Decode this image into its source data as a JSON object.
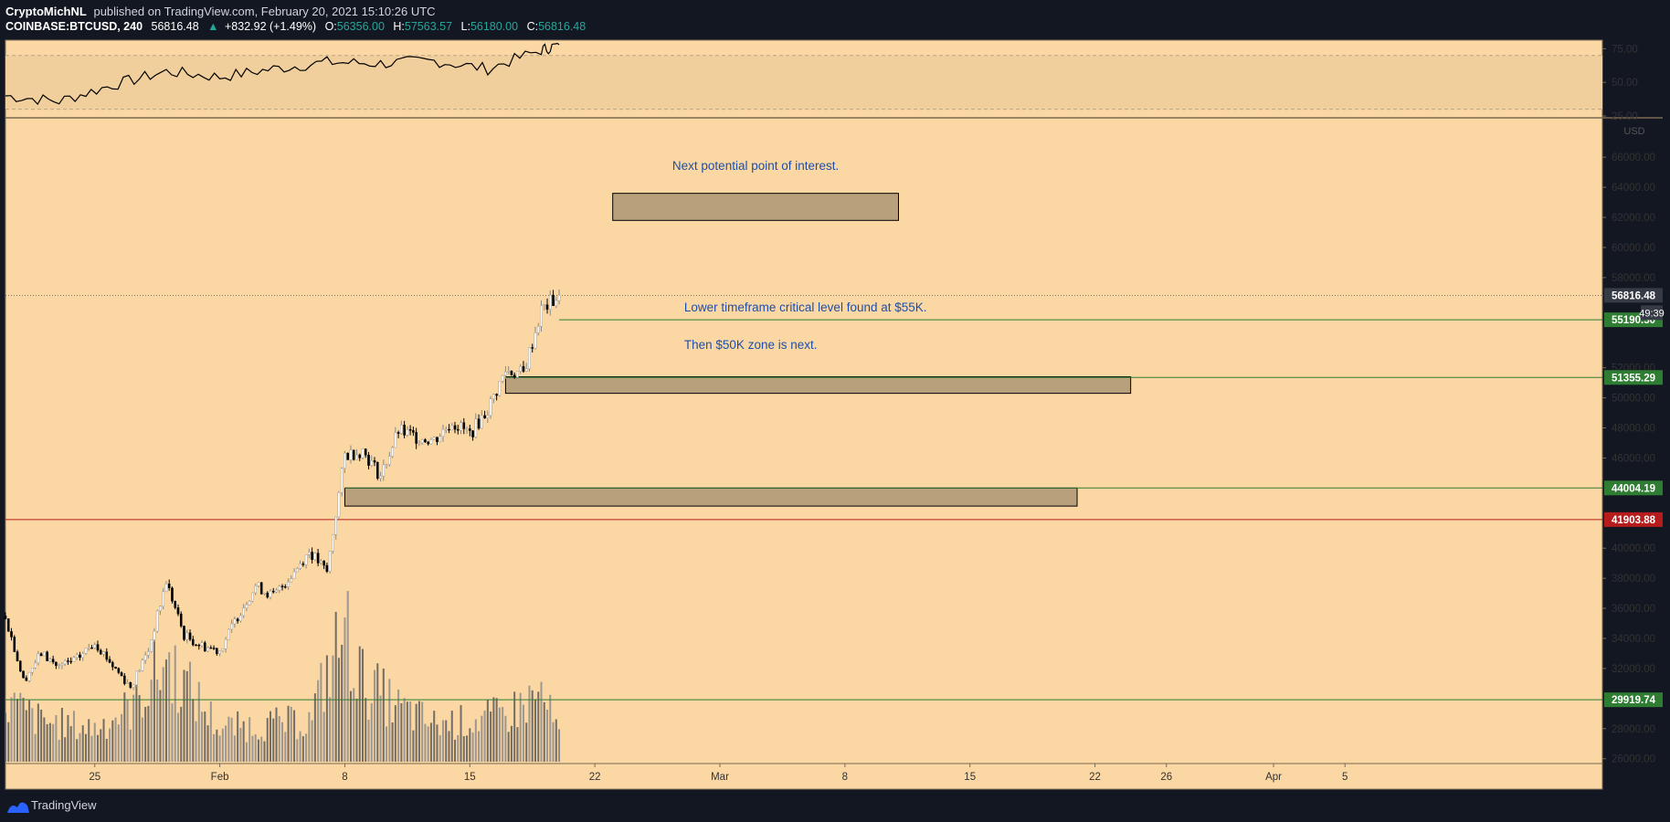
{
  "header": {
    "author": "CryptoMichNL",
    "published": "published on TradingView.com, February 20, 2021 15:10:26 UTC",
    "symbol": "COINBASE:BTCUSD, 240",
    "last": "56816.48",
    "change": "+832.92 (+1.49%)",
    "o_label": "O:",
    "o": "56356.00",
    "h_label": "H:",
    "h": "57563.57",
    "l_label": "L:",
    "l": "56180.00",
    "c_label": "C:",
    "c": "56816.48"
  },
  "footer": {
    "brand": "TradingView"
  },
  "colors": {
    "background": "#fbd7a3",
    "up": "#ffffff",
    "down": "#000000",
    "zone_fill": "#b8a07c",
    "support": "#2e7d32",
    "resistance": "#b71c1c",
    "annotation": "#1e4fa8",
    "rsi_band": "#f0cf9c"
  },
  "chart_data": [
    {
      "type": "line",
      "name": "rsi-pane",
      "y_ticks": [
        "75.00",
        "50.00",
        "25.00"
      ],
      "ylim": [
        25,
        80
      ],
      "band": [
        30,
        70
      ],
      "x": [
        "2021-01-20",
        "2021-01-23",
        "2021-01-26",
        "2021-01-29",
        "2021-02-01",
        "2021-02-04",
        "2021-02-07",
        "2021-02-10",
        "2021-02-13",
        "2021-02-16",
        "2021-02-19",
        "2021-02-20"
      ],
      "values": [
        40,
        36,
        48,
        58,
        54,
        60,
        65,
        64,
        66,
        60,
        74,
        78
      ]
    },
    {
      "type": "candlestick",
      "name": "price-pane",
      "unit": "USD",
      "y_ticks": [
        "66000.00",
        "64000.00",
        "62000.00",
        "60000.00",
        "58000.00",
        "52000.00",
        "50000.00",
        "48000.00",
        "46000.00",
        "40000.00",
        "38000.00",
        "36000.00",
        "34000.00",
        "32000.00",
        "28000.00",
        "26000.00"
      ],
      "ylim": [
        25800,
        68500
      ],
      "x_ticks": [
        "25",
        "Feb",
        "8",
        "15",
        "22",
        "Mar",
        "8",
        "15",
        "22",
        "26",
        "Apr",
        "5"
      ],
      "price_path": [
        {
          "date": "2021-01-20",
          "price": 35500
        },
        {
          "date": "2021-01-21",
          "price": 31200
        },
        {
          "date": "2021-01-22",
          "price": 33000
        },
        {
          "date": "2021-01-23",
          "price": 32100
        },
        {
          "date": "2021-01-24",
          "price": 32600
        },
        {
          "date": "2021-01-25",
          "price": 33800
        },
        {
          "date": "2021-01-26",
          "price": 32200
        },
        {
          "date": "2021-01-27",
          "price": 30800
        },
        {
          "date": "2021-01-28",
          "price": 33200
        },
        {
          "date": "2021-01-29",
          "price": 37800
        },
        {
          "date": "2021-01-30",
          "price": 34200
        },
        {
          "date": "2021-01-31",
          "price": 33500
        },
        {
          "date": "2021-02-01",
          "price": 33200
        },
        {
          "date": "2021-02-02",
          "price": 35500
        },
        {
          "date": "2021-02-03",
          "price": 37500
        },
        {
          "date": "2021-02-04",
          "price": 36800
        },
        {
          "date": "2021-02-05",
          "price": 38200
        },
        {
          "date": "2021-02-06",
          "price": 39800
        },
        {
          "date": "2021-02-07",
          "price": 38400
        },
        {
          "date": "2021-02-08",
          "price": 46200
        },
        {
          "date": "2021-02-09",
          "price": 46500
        },
        {
          "date": "2021-02-10",
          "price": 44800
        },
        {
          "date": "2021-02-11",
          "price": 47800
        },
        {
          "date": "2021-02-12",
          "price": 47400
        },
        {
          "date": "2021-02-13",
          "price": 47200
        },
        {
          "date": "2021-02-14",
          "price": 48400
        },
        {
          "date": "2021-02-15",
          "price": 47600
        },
        {
          "date": "2021-02-16",
          "price": 49200
        },
        {
          "date": "2021-02-17",
          "price": 51800
        },
        {
          "date": "2021-02-18",
          "price": 51600
        },
        {
          "date": "2021-02-19",
          "price": 55800
        },
        {
          "date": "2021-02-20",
          "price": 56816.48
        }
      ],
      "volume_path": [
        {
          "date": "2021-01-20",
          "volume": 0.45
        },
        {
          "date": "2021-01-22",
          "volume": 0.3
        },
        {
          "date": "2021-01-25",
          "volume": 0.25
        },
        {
          "date": "2021-01-27",
          "volume": 0.4
        },
        {
          "date": "2021-01-29",
          "volume": 0.75
        },
        {
          "date": "2021-02-01",
          "volume": 0.25
        },
        {
          "date": "2021-02-04",
          "volume": 0.28
        },
        {
          "date": "2021-02-06",
          "volume": 0.3
        },
        {
          "date": "2021-02-08",
          "volume": 1.0
        },
        {
          "date": "2021-02-09",
          "volume": 0.6
        },
        {
          "date": "2021-02-11",
          "volume": 0.4
        },
        {
          "date": "2021-02-13",
          "volume": 0.28
        },
        {
          "date": "2021-02-15",
          "volume": 0.3
        },
        {
          "date": "2021-02-17",
          "volume": 0.35
        },
        {
          "date": "2021-02-19",
          "volume": 0.5
        },
        {
          "date": "2021-02-20",
          "volume": 0.2
        }
      ],
      "levels": [
        {
          "price": 55190.5,
          "label": "55190.50",
          "kind": "support",
          "from": "2021-02-20"
        },
        {
          "price": 51355.29,
          "label": "51355.29",
          "kind": "support",
          "from": "2021-02-17"
        },
        {
          "price": 44004.19,
          "label": "44004.19",
          "kind": "support",
          "from": "2021-02-08"
        },
        {
          "price": 41903.88,
          "label": "41903.88",
          "kind": "resistance",
          "from": "2021-01-20"
        },
        {
          "price": 29919.74,
          "label": "29919.74",
          "kind": "support",
          "from": "2021-01-20"
        }
      ],
      "last_price": {
        "price": 56816.48,
        "label": "56816.48",
        "countdown": "49:39"
      },
      "zones": [
        {
          "name": "zone-62k",
          "price_low": 61800,
          "price_high": 63600,
          "x_from": "2021-02-23",
          "x_to": "2021-03-11"
        },
        {
          "name": "zone-51k",
          "price_low": 50300,
          "price_high": 51400,
          "x_from": "2021-02-17",
          "x_to": "2021-03-24"
        },
        {
          "name": "zone-43k",
          "price_low": 42800,
          "price_high": 44000,
          "x_from": "2021-02-08",
          "x_to": "2021-03-21"
        }
      ],
      "annotations": [
        {
          "name": "annotation-next-poi",
          "text": "Next potential point of interest.",
          "x": "2021-03-03",
          "price": 65400,
          "anchor": "middle"
        },
        {
          "name": "annotation-55k",
          "text": "Lower timeframe critical level found at $55K.",
          "x": "2021-02-27",
          "price": 56000,
          "anchor": "start"
        },
        {
          "name": "annotation-50k",
          "text": "Then $50K zone is next.",
          "x": "2021-02-27",
          "price": 53500,
          "anchor": "start"
        }
      ]
    }
  ]
}
